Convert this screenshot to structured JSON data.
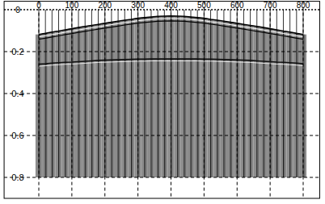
{
  "chart_data": {
    "type": "wiggle",
    "x": [
      0,
      20,
      40,
      60,
      80,
      100,
      120,
      140,
      160,
      180,
      200,
      220,
      240,
      260,
      280,
      300,
      320,
      340,
      360,
      380,
      400,
      420,
      440,
      460,
      480,
      500,
      520,
      540,
      560,
      580,
      600,
      620,
      640,
      660,
      680,
      700,
      720,
      740,
      760,
      780,
      800
    ],
    "series": [
      {
        "color": "#8c8c8c",
        "values": [
          0.118,
          0.113,
          0.107,
          0.102,
          0.096,
          0.091,
          0.085,
          0.08,
          0.075,
          0.07,
          0.065,
          0.06,
          0.055,
          0.05,
          0.046,
          0.041,
          0.038,
          0.035,
          0.032,
          0.031,
          0.03,
          0.031,
          0.032,
          0.035,
          0.038,
          0.041,
          0.046,
          0.05,
          0.055,
          0.06,
          0.065,
          0.07,
          0.075,
          0.08,
          0.085,
          0.091,
          0.096,
          0.102,
          0.107,
          0.113,
          0.118
        ]
      },
      {
        "color": "#111111",
        "values": [
          0.26,
          0.258,
          0.255,
          0.253,
          0.251,
          0.25,
          0.248,
          0.246,
          0.244,
          0.242,
          0.241,
          0.24,
          0.239,
          0.238,
          0.237,
          0.236,
          0.236,
          0.235,
          0.235,
          0.235,
          0.235,
          0.235,
          0.235,
          0.235,
          0.235,
          0.236,
          0.236,
          0.237,
          0.238,
          0.239,
          0.24,
          0.241,
          0.242,
          0.244,
          0.246,
          0.248,
          0.25,
          0.251,
          0.253,
          0.255,
          0.258
        ]
      }
    ],
    "time_range": [
      0,
      0.8
    ],
    "xlim": [
      -105,
      850
    ],
    "xticks": [
      0,
      100,
      200,
      300,
      400,
      500,
      600,
      700,
      800
    ],
    "ylim": [
      -0.04,
      0.9
    ],
    "yticks": [
      0,
      0.2,
      0.4,
      0.6,
      0.8
    ],
    "grid": true
  }
}
